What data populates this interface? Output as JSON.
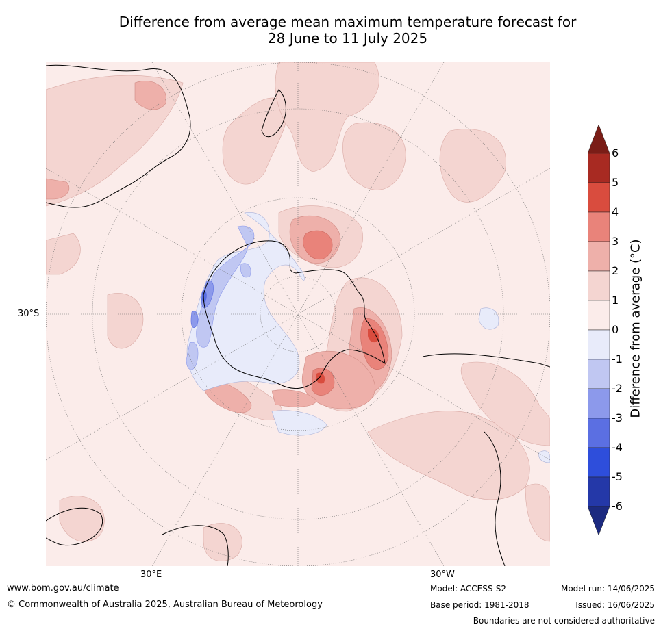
{
  "title_line1": "Difference from average mean maximum temperature forecast for",
  "title_line2": "28 June to 11 July 2025",
  "graticule_labels": {
    "lat_30s": "30°S",
    "lon_30e": "30°E",
    "lon_30w": "30°W"
  },
  "colorbar": {
    "label": "Difference from average (°C)",
    "ticks": [
      "6",
      "5",
      "4",
      "3",
      "2",
      "1",
      "0",
      "-1",
      "-2",
      "-3",
      "-4",
      "-5",
      "-6"
    ],
    "colors": {
      "above_6": "#7a1d17",
      "5_to_6": "#a82a22",
      "4_to_5": "#d94c3e",
      "3_to_4": "#e9837a",
      "2_to_3": "#eeb0aa",
      "1_to_2": "#f4d5d1",
      "0_to_1": "#fbecea",
      "minus1_to_0": "#e8ebfa",
      "minus2_to_minus1": "#c0c7f2",
      "minus3_to_minus2": "#8c99eb",
      "minus4_to_minus3": "#5b6fe2",
      "minus5_to_minus4": "#2e4edb",
      "minus6_to_minus5": "#2438a8",
      "below_minus6": "#1c2a80"
    }
  },
  "footer": {
    "website": "www.bom.gov.au/climate",
    "copyright": "© Commonwealth of Australia 2025, Australian Bureau of Meteorology",
    "model": "Model: ACCESS-S2",
    "base_period": "Base period: 1981-2018",
    "model_run": "Model run: 14/06/2025",
    "issued": "Issued: 16/06/2025",
    "disclaimer": "Boundaries are not considered authoritative"
  }
}
